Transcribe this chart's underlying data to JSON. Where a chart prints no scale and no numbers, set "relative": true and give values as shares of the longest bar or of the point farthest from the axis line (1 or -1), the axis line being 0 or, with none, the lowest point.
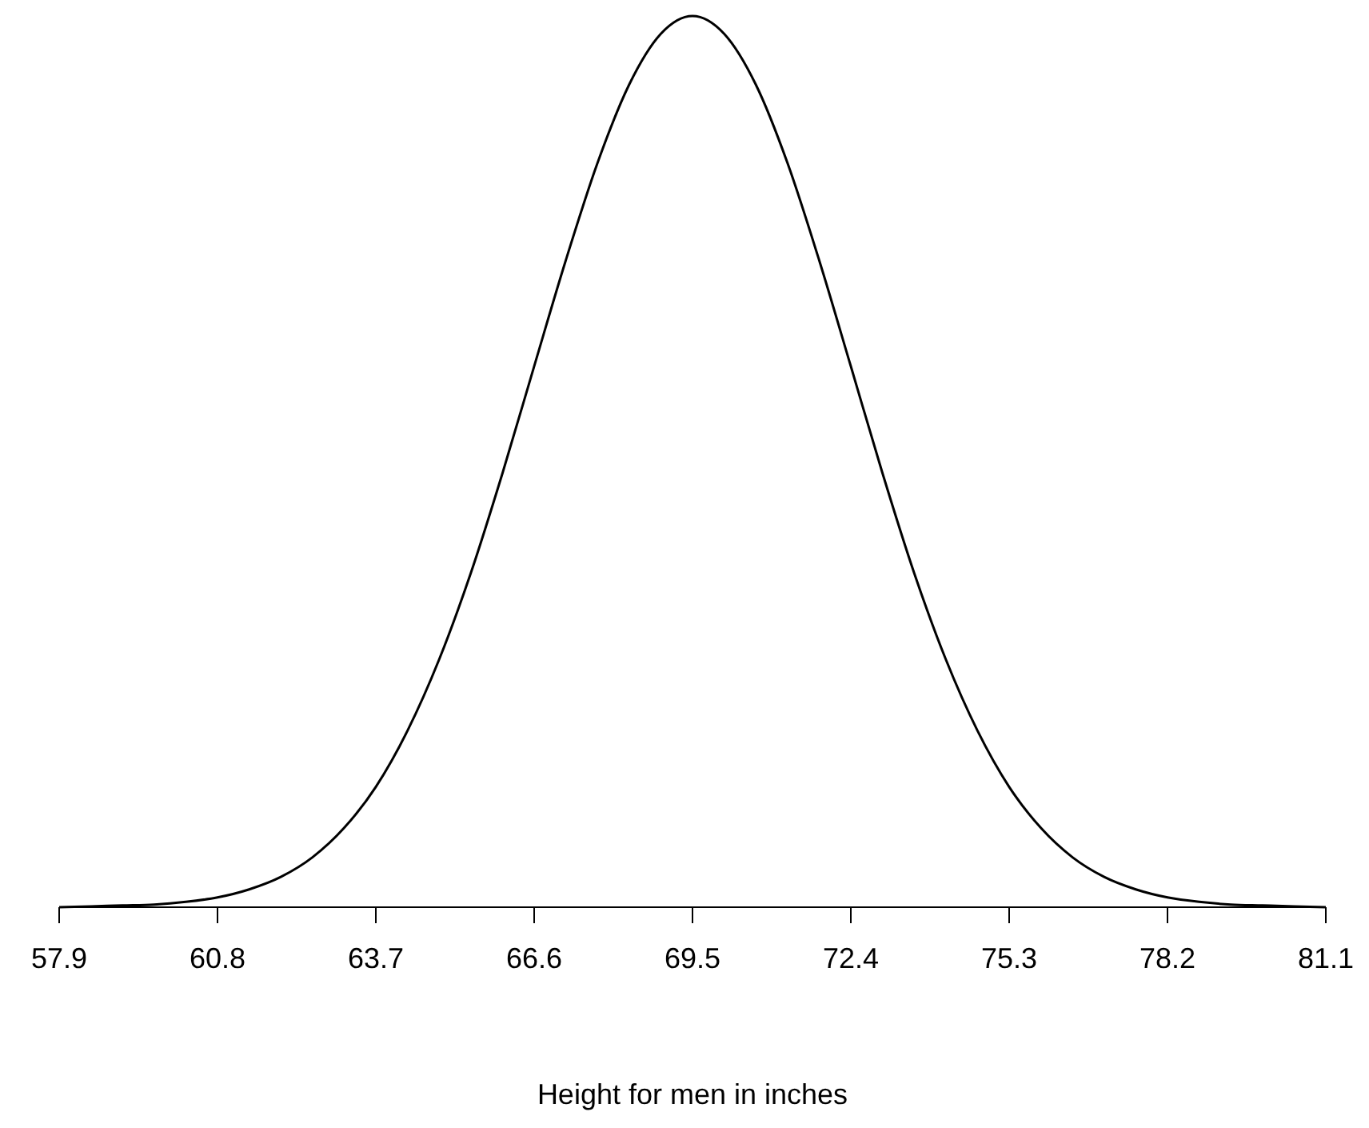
{
  "chart_data": {
    "type": "line",
    "xlabel": "Height for men in inches",
    "relative": true,
    "x": [
      57.9,
      58.48,
      59.06,
      59.64,
      60.22,
      60.8,
      61.38,
      61.96,
      62.54,
      63.12,
      63.7,
      64.28,
      64.86,
      65.44,
      66.02,
      66.6,
      67.18,
      67.76,
      68.34,
      68.92,
      69.5,
      70.08,
      70.66,
      71.24,
      71.82,
      72.4,
      72.98,
      73.56,
      74.14,
      74.72,
      75.3,
      75.88,
      76.46,
      77.04,
      77.62,
      78.2,
      78.78,
      79.36,
      79.94,
      80.52,
      81.1
    ],
    "series": [
      {
        "color": "#000000",
        "values": [
          0,
          0.001,
          0.002,
          0.003,
          0.006,
          0.011,
          0.02,
          0.034,
          0.056,
          0.089,
          0.135,
          0.198,
          0.278,
          0.375,
          0.487,
          0.607,
          0.726,
          0.835,
          0.923,
          0.98,
          1,
          0.98,
          0.923,
          0.835,
          0.726,
          0.607,
          0.487,
          0.375,
          0.278,
          0.198,
          0.135,
          0.089,
          0.056,
          0.034,
          0.02,
          0.011,
          0.006,
          0.003,
          0.002,
          0.001,
          0
        ]
      }
    ],
    "xlim": [
      57.9,
      81.1
    ],
    "xticks": [
      57.9,
      60.8,
      63.7,
      66.6,
      69.5,
      72.4,
      75.3,
      78.2,
      81.1
    ],
    "line_style": "solid",
    "marker": "none",
    "grid": false
  }
}
